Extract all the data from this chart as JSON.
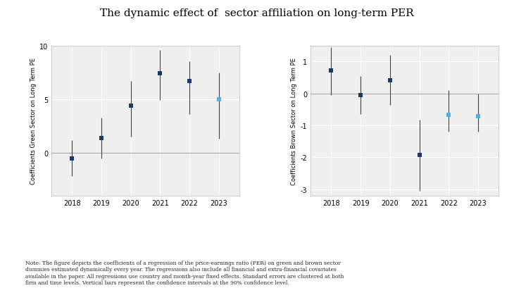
{
  "title": "The dynamic effect of  sector affiliation on long-term PER",
  "title_fontsize": 11,
  "years": [
    2018,
    2019,
    2020,
    2021,
    2022,
    2023
  ],
  "green_coefs": [
    -0.5,
    1.4,
    4.4,
    7.4,
    6.7,
    5.0
  ],
  "green_ci_low": [
    -2.2,
    -0.5,
    1.5,
    4.9,
    3.6,
    1.3
  ],
  "green_ci_high": [
    1.2,
    3.3,
    6.7,
    9.6,
    8.5,
    7.5
  ],
  "green_colors": [
    "#1a3a6b",
    "#1a3a6b",
    "#1a3a6b",
    "#1a3a6b",
    "#1a3a6b",
    "#4db3e6"
  ],
  "brown_coefs": [
    0.72,
    -0.05,
    0.42,
    -1.93,
    -0.68,
    -0.72
  ],
  "brown_ci_low": [
    -0.05,
    -0.65,
    -0.37,
    -3.05,
    -1.2,
    -1.2
  ],
  "brown_ci_high": [
    1.45,
    0.55,
    1.2,
    -0.82,
    0.1,
    0.0
  ],
  "brown_colors": [
    "#1a3a6b",
    "#1a3a6b",
    "#1a3a6b",
    "#1a3a6b",
    "#4db3e6",
    "#4db3e6"
  ],
  "green_ylabel": "Coefficients Green Sector on Long Term PE",
  "brown_ylabel": "Coefficients Brown Sector on Long Term PE",
  "green_ylim": [
    -4,
    10
  ],
  "brown_ylim": [
    -3.2,
    1.5
  ],
  "green_yticks": [
    0,
    5,
    10
  ],
  "brown_yticks": [
    -3,
    -2,
    -1,
    0,
    1
  ],
  "note": "Note: The figure depicts the coefficients of a regression of the price-earnings ratio (PER) on green and brown sector\ndummies estimated dynamically every year. The regressions also include all financial and extra-financial covariates\navailable in the paper. All regressions use country and month-year fixed effects. Standard errors are clustered at both\nfirm and time levels. Vertical bars represent the confidence intervals at the 90% confidence level.",
  "background_color": "#efefef",
  "grid_color": "#ffffff",
  "zero_line_color": "#aaaaaa",
  "marker_size": 5,
  "capsize": 2,
  "elinewidth": 0.8,
  "ecolor": "#444444"
}
